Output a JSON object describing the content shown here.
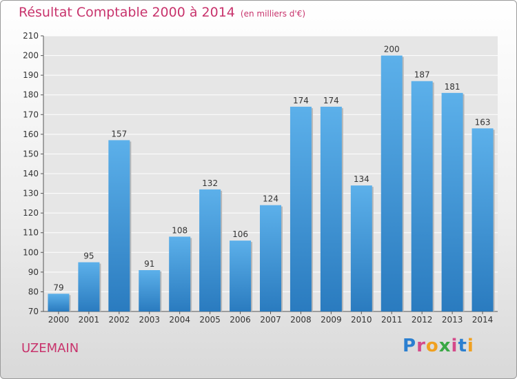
{
  "header": {
    "title": "Résultat Comptable 2000 à 2014",
    "subtitle": "(en milliers d'€)"
  },
  "footer": {
    "place": "UZEMAIN",
    "logo": "Proxiti"
  },
  "colors": {
    "title": "#c8336c",
    "bar_top": "#5cb0ea",
    "bar_bottom": "#2a7bbf",
    "logo_letters": [
      "#2b7fd0",
      "#d44a8a",
      "#f0a020",
      "#3aa845",
      "#d44a8a",
      "#2b7fd0",
      "#f0a020"
    ]
  },
  "chart_data": {
    "type": "bar",
    "title": "Résultat Comptable 2000 à 2014",
    "subtitle": "(en milliers d'€)",
    "categories": [
      "2000",
      "2001",
      "2002",
      "2003",
      "2004",
      "2005",
      "2006",
      "2007",
      "2008",
      "2009",
      "2010",
      "2011",
      "2012",
      "2013",
      "2014"
    ],
    "values": [
      79,
      95,
      157,
      91,
      108,
      132,
      106,
      124,
      174,
      174,
      134,
      200,
      187,
      181,
      163
    ],
    "ylim": [
      70,
      210
    ],
    "yticks": [
      70,
      80,
      90,
      100,
      110,
      120,
      130,
      140,
      150,
      160,
      170,
      180,
      190,
      200,
      210
    ],
    "grid": true,
    "data_labels": true
  }
}
